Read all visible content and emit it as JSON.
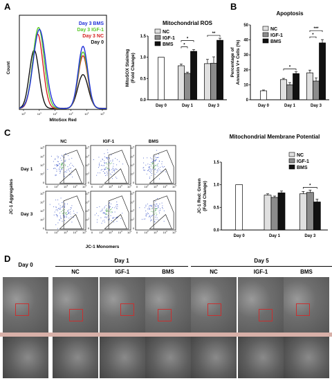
{
  "panels": {
    "A": "A",
    "B": "B",
    "C": "C",
    "D": "D"
  },
  "groups": {
    "nc": "NC",
    "igf": "IGF-1",
    "bms": "BMS"
  },
  "colors": {
    "nc": "#e0e0e0",
    "igf": "#8c8c8c",
    "bms": "#111111",
    "day0": "#ffffff"
  },
  "histogram": {
    "ylabel": "Count",
    "xlabel": "MitoSox Red",
    "xticks": [
      "10^0",
      "10^1",
      "10^2",
      "10^3",
      "10^4",
      "10^5"
    ],
    "legend": [
      {
        "label": "Day 3 BMS",
        "color": "#2030d8"
      },
      {
        "label": "Day 3 IGF-1",
        "color": "#58c828"
      },
      {
        "label": "Day 3 NC",
        "color": "#d62020"
      },
      {
        "label": "Day 0",
        "color": "#111111"
      }
    ]
  },
  "flow": {
    "cols": [
      "NC",
      "IGF-1",
      "BMS"
    ],
    "rows": [
      "Day 1",
      "Day 3"
    ],
    "ylabel": "JC-1 Aggregates",
    "xlabel": "JC-1 Monomers",
    "yticks": [
      "10^5",
      "10^4",
      "10^3",
      "10^2",
      "0"
    ],
    "xticks": [
      "0",
      "10^2",
      "10^3",
      "10^4",
      "10^5"
    ]
  },
  "chart_data": [
    {
      "type": "bar",
      "title": "Mitochondrial ROS",
      "ylabel": "MitoSOX Staining\n(Fold Change)",
      "ylim": [
        0,
        1.5
      ],
      "yticks": [
        "0.0",
        "0.5",
        "1.0",
        "1.5"
      ],
      "categories": [
        "Day 0",
        "Day 1",
        "Day 3"
      ],
      "series": [
        {
          "name": "NC",
          "values": [
            1.0,
            0.8,
            0.85
          ],
          "err": [
            0,
            0.04,
            0.1
          ]
        },
        {
          "name": "IGF-1",
          "values": [
            null,
            0.62,
            0.86
          ],
          "err": [
            0,
            0.03,
            0.15
          ]
        },
        {
          "name": "BMS",
          "values": [
            null,
            1.14,
            1.4
          ],
          "err": [
            0,
            0.04,
            0.05
          ]
        }
      ],
      "significance": [
        {
          "category": "Day 1",
          "from": "NC",
          "to": "IGF-1",
          "label": "*"
        },
        {
          "category": "Day 1",
          "from": "NC",
          "to": "BMS",
          "label": "*"
        },
        {
          "category": "Day 3",
          "from": "NC",
          "to": "BMS",
          "label": "**"
        }
      ],
      "legend": "top-left"
    },
    {
      "type": "bar",
      "title": "Apoptosis",
      "ylabel": "Percentage of\nAnnexin V+ Cells (%)",
      "ylim": [
        0,
        50
      ],
      "yticks": [
        "0",
        "10",
        "20",
        "30",
        "40",
        "50"
      ],
      "categories": [
        "Day 0",
        "Day 1",
        "Day 3"
      ],
      "series": [
        {
          "name": "NC",
          "values": [
            6,
            13.5,
            18
          ],
          "err": [
            0.5,
            0.8,
            1.8
          ]
        },
        {
          "name": "IGF-1",
          "values": [
            null,
            10,
            12.5
          ],
          "err": [
            0,
            1.5,
            2
          ]
        },
        {
          "name": "BMS",
          "values": [
            null,
            17.5,
            38
          ],
          "err": [
            0,
            1.2,
            2.2
          ]
        }
      ],
      "significance": [
        {
          "category": "Day 1",
          "from": "NC",
          "to": "BMS",
          "label": "*"
        },
        {
          "category": "Day 3",
          "from": "NC",
          "to": "IGF-1",
          "label": "*"
        },
        {
          "category": "Day 3",
          "from": "NC",
          "to": "BMS",
          "label": "***"
        }
      ],
      "legend": "top-left"
    },
    {
      "type": "bar",
      "title": "Mitochondrial Membrane Potential",
      "ylabel": "JC-1 Red: Green\n(Fold Change)",
      "ylim": [
        0,
        1.5
      ],
      "yticks": [
        "0.0",
        "0.5",
        "1.0",
        "1.5"
      ],
      "categories": [
        "Day 0",
        "Day 1",
        "Day 3"
      ],
      "series": [
        {
          "name": "NC",
          "values": [
            1.0,
            0.77,
            0.8
          ],
          "err": [
            0,
            0.03,
            0.05
          ]
        },
        {
          "name": "IGF-1",
          "values": [
            null,
            0.72,
            0.83
          ],
          "err": [
            0,
            0.03,
            0.05
          ]
        },
        {
          "name": "BMS",
          "values": [
            null,
            0.82,
            0.62
          ],
          "err": [
            0,
            0.04,
            0.06
          ]
        }
      ],
      "significance": [
        {
          "category": "Day 3",
          "from": "NC",
          "to": "BMS",
          "label": "*"
        }
      ],
      "legend": "top-right"
    }
  ],
  "em": {
    "group_headers": [
      "Day 1",
      "Day 5"
    ],
    "columns": [
      "Day 0",
      "NC",
      "IGF-1",
      "BMS",
      "NC",
      "IGF-1",
      "BMS"
    ]
  }
}
